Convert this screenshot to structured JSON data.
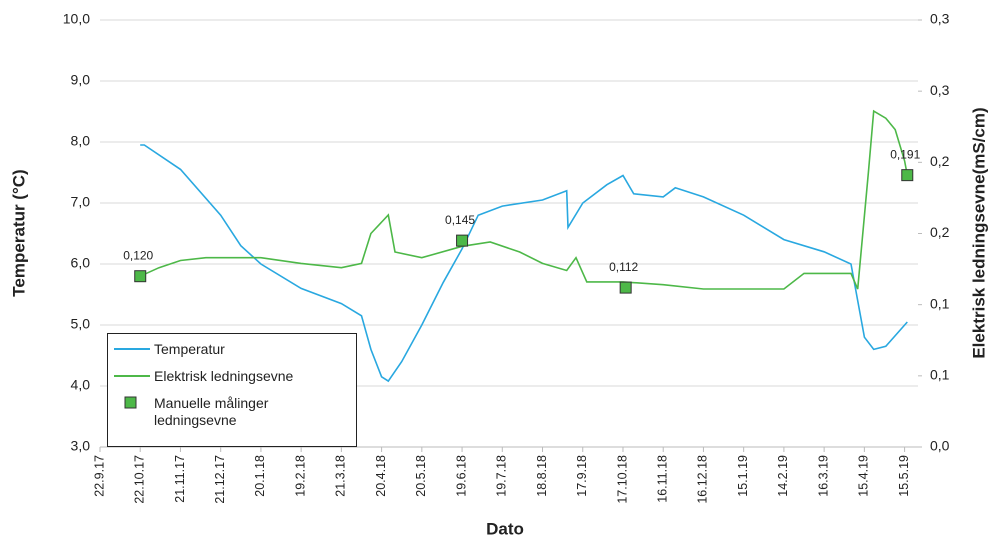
{
  "chart_data": {
    "type": "line",
    "xlabel": "Dato",
    "ylabel": "Temperatur (°C)",
    "y2label": "Elektrisk ledningsevne(mS/cm)",
    "xlim": [
      "2017-09-22",
      "2019-05-25"
    ],
    "xticks": [
      {
        "value": "2017-09-22",
        "label": "22.9.17"
      },
      {
        "value": "2017-10-22",
        "label": "22.10.17"
      },
      {
        "value": "2017-11-21",
        "label": "21.11.17"
      },
      {
        "value": "2017-12-21",
        "label": "21.12.17"
      },
      {
        "value": "2018-01-20",
        "label": "20.1.18"
      },
      {
        "value": "2018-02-19",
        "label": "19.2.18"
      },
      {
        "value": "2018-03-21",
        "label": "21.3.18"
      },
      {
        "value": "2018-04-20",
        "label": "20.4.18"
      },
      {
        "value": "2018-05-20",
        "label": "20.5.18"
      },
      {
        "value": "2018-06-19",
        "label": "19.6.18"
      },
      {
        "value": "2018-07-19",
        "label": "19.7.18"
      },
      {
        "value": "2018-08-18",
        "label": "18.8.18"
      },
      {
        "value": "2018-09-17",
        "label": "17.9.18"
      },
      {
        "value": "2018-10-17",
        "label": "17.10.18"
      },
      {
        "value": "2018-11-16",
        "label": "16.11.18"
      },
      {
        "value": "2018-12-16",
        "label": "16.12.18"
      },
      {
        "value": "2019-01-15",
        "label": "15.1.19"
      },
      {
        "value": "2019-02-14",
        "label": "14.2.19"
      },
      {
        "value": "2019-03-16",
        "label": "16.3.19"
      },
      {
        "value": "2019-04-15",
        "label": "15.4.19"
      },
      {
        "value": "2019-05-15",
        "label": "15.5.19"
      }
    ],
    "ylim": [
      3,
      10
    ],
    "yticks": [
      {
        "value": 3,
        "label": "3,0"
      },
      {
        "value": 4,
        "label": "4,0"
      },
      {
        "value": 5,
        "label": "5,0"
      },
      {
        "value": 6,
        "label": "6,0"
      },
      {
        "value": 7,
        "label": "7,0"
      },
      {
        "value": 8,
        "label": "8,0"
      },
      {
        "value": 9,
        "label": "9,0"
      },
      {
        "value": 10,
        "label": "10,0"
      }
    ],
    "y2lim": [
      0,
      0.3
    ],
    "y2ticks": [
      {
        "value": 0,
        "label": "0,0"
      },
      {
        "value": 0.05,
        "label": "0,1"
      },
      {
        "value": 0.1,
        "label": "0,1"
      },
      {
        "value": 0.15,
        "label": "0,2"
      },
      {
        "value": 0.2,
        "label": "0,2"
      },
      {
        "value": 0.25,
        "label": "0,3"
      },
      {
        "value": 0.3,
        "label": "0,3"
      }
    ],
    "grid": true,
    "legend": "lower left",
    "series": [
      {
        "name": "Temperatur",
        "color": "#29a8e0",
        "axis": "y",
        "x": [
          "2017-10-22",
          "2017-10-25",
          "2017-11-21",
          "2017-12-21",
          "2018-01-05",
          "2018-01-20",
          "2018-02-19",
          "2018-03-21",
          "2018-04-05",
          "2018-04-12",
          "2018-04-20",
          "2018-04-25",
          "2018-05-05",
          "2018-05-20",
          "2018-06-05",
          "2018-06-19",
          "2018-07-01",
          "2018-07-19",
          "2018-08-18",
          "2018-09-05",
          "2018-09-06",
          "2018-09-17",
          "2018-10-05",
          "2018-10-17",
          "2018-10-25",
          "2018-11-16",
          "2018-11-25",
          "2018-12-16",
          "2019-01-15",
          "2019-02-14",
          "2019-03-16",
          "2019-04-05",
          "2019-04-10",
          "2019-04-15",
          "2019-04-22",
          "2019-05-01",
          "2019-05-17"
        ],
        "values": [
          7.95,
          7.95,
          7.55,
          6.8,
          6.3,
          6.0,
          5.6,
          5.35,
          5.15,
          4.6,
          4.15,
          4.08,
          4.4,
          5.0,
          5.7,
          6.25,
          6.8,
          6.95,
          7.05,
          7.2,
          6.6,
          7.0,
          7.3,
          7.45,
          7.15,
          7.1,
          7.25,
          7.1,
          6.8,
          6.4,
          6.2,
          6.0,
          5.4,
          4.8,
          4.6,
          4.65,
          5.05
        ]
      },
      {
        "name": "Elektrisk ledningsevne",
        "color": "#4db848",
        "axis": "y2",
        "x": [
          "2017-10-22",
          "2017-11-05",
          "2017-11-21",
          "2017-12-10",
          "2018-01-20",
          "2018-02-19",
          "2018-03-21",
          "2018-04-05",
          "2018-04-12",
          "2018-04-25",
          "2018-04-30",
          "2018-05-20",
          "2018-06-19",
          "2018-07-10",
          "2018-08-01",
          "2018-08-18",
          "2018-09-05",
          "2018-09-12",
          "2018-09-20",
          "2018-10-17",
          "2018-11-16",
          "2018-12-16",
          "2019-02-14",
          "2019-03-01",
          "2019-04-05",
          "2019-04-10",
          "2019-04-18",
          "2019-04-22",
          "2019-05-01",
          "2019-05-08",
          "2019-05-15",
          "2019-05-17"
        ],
        "values": [
          0.12,
          0.126,
          0.131,
          0.133,
          0.133,
          0.129,
          0.126,
          0.129,
          0.15,
          0.163,
          0.137,
          0.133,
          0.141,
          0.144,
          0.137,
          0.129,
          0.124,
          0.133,
          0.116,
          0.116,
          0.114,
          0.111,
          0.111,
          0.122,
          0.122,
          0.111,
          0.193,
          0.236,
          0.231,
          0.223,
          0.201,
          0.191
        ]
      },
      {
        "name": "Manuelle målinger ledningsevne",
        "color": "#4db848",
        "axis": "y2",
        "marker": "square",
        "x": [
          "2017-10-22",
          "2018-06-19",
          "2018-10-19",
          "2019-05-17"
        ],
        "values": [
          0.12,
          0.145,
          0.112,
          0.191
        ],
        "value_labels": [
          "0,120",
          "0,145",
          "0,112",
          "0,191"
        ]
      }
    ]
  }
}
